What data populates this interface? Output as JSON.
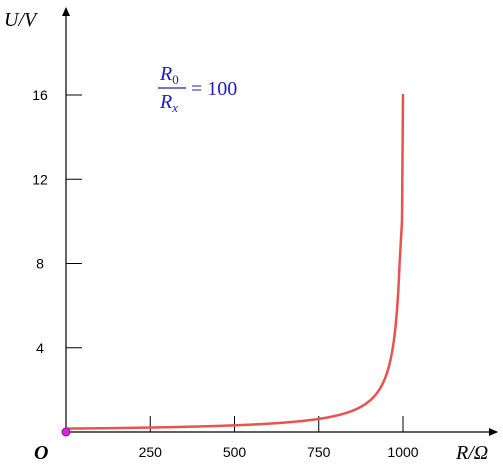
{
  "chart_data": {
    "type": "line",
    "title": "",
    "xlabel": "R/Ω",
    "ylabel": "U/V",
    "origin_label": "O",
    "xlim": [
      0,
      1000
    ],
    "ylim": [
      0,
      16
    ],
    "x_ticks": [
      250,
      500,
      750,
      1000
    ],
    "x_tick_labels": [
      "250",
      "500",
      "750",
      "1000"
    ],
    "y_ticks": [
      4,
      8,
      12,
      16
    ],
    "y_tick_labels": [
      "4",
      "8",
      "12",
      "16"
    ],
    "grid": false,
    "legend": "none",
    "annotation": {
      "numerator_var": "R",
      "numerator_sub": "0",
      "denominator_var": "R",
      "denominator_sub": "x",
      "equals_text": "= 100"
    },
    "series": [
      {
        "line_color": "#e8524f",
        "marker_color": "#e020e0",
        "x": [
          0,
          100,
          200,
          300,
          400,
          500,
          600,
          700,
          750,
          800,
          850,
          900,
          930,
          950,
          965,
          975,
          985,
          990,
          994,
          1000
        ],
        "y": [
          0.16,
          0.18,
          0.2,
          0.23,
          0.27,
          0.32,
          0.4,
          0.53,
          0.64,
          0.8,
          1.07,
          1.6,
          2.29,
          3.2,
          4.57,
          6.4,
          10.67,
          16,
          16,
          16
        ]
      }
    ]
  }
}
